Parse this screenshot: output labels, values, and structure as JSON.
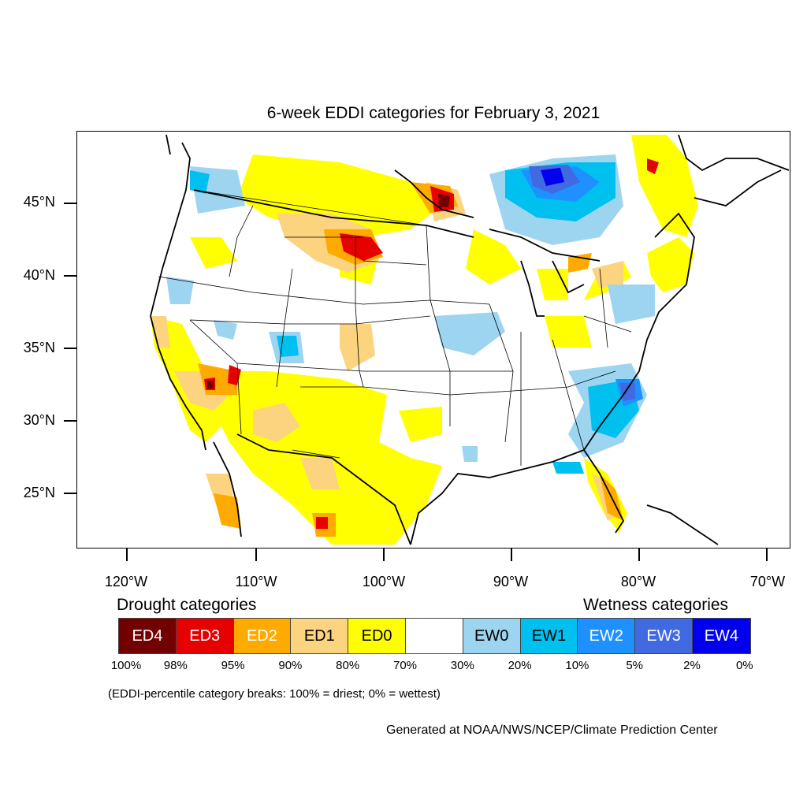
{
  "title": "6-week EDDI categories for February 3, 2021",
  "lat_labels": [
    "45°N",
    "40°N",
    "35°N",
    "30°N",
    "25°N"
  ],
  "lon_labels": [
    "120°W",
    "110°W",
    "100°W",
    "90°W",
    "80°W",
    "70°W"
  ],
  "legend": {
    "drought_title": "Drought categories",
    "wetness_title": "Wetness categories",
    "categories": [
      {
        "label": "ED4",
        "color": "#730000",
        "text_color": "#ffffff"
      },
      {
        "label": "ED3",
        "color": "#e60000",
        "text_color": "#ffffff"
      },
      {
        "label": "ED2",
        "color": "#ffaa00",
        "text_color": "#ffffff"
      },
      {
        "label": "ED1",
        "color": "#fcd37f",
        "text_color": "#000000"
      },
      {
        "label": "ED0",
        "color": "#ffff00",
        "text_color": "#000000"
      },
      {
        "label": "",
        "color": "#ffffff",
        "text_color": "#000000"
      },
      {
        "label": "EW0",
        "color": "#9dd4f0",
        "text_color": "#000000"
      },
      {
        "label": "EW1",
        "color": "#00c0f0",
        "text_color": "#000000"
      },
      {
        "label": "EW2",
        "color": "#1e90ff",
        "text_color": "#ffffff"
      },
      {
        "label": "EW3",
        "color": "#4169e1",
        "text_color": "#ffffff"
      },
      {
        "label": "EW4",
        "color": "#0000ee",
        "text_color": "#ffffff"
      }
    ],
    "percentiles": [
      "100%",
      "98%",
      "95%",
      "90%",
      "80%",
      "70%",
      "30%",
      "20%",
      "10%",
      "5%",
      "2%",
      "0%"
    ]
  },
  "note": "(EDDI-percentile category breaks: 100% = driest; 0% = wettest)",
  "credit": "Generated at NOAA/NWS/NCEP/Climate Prediction Center"
}
